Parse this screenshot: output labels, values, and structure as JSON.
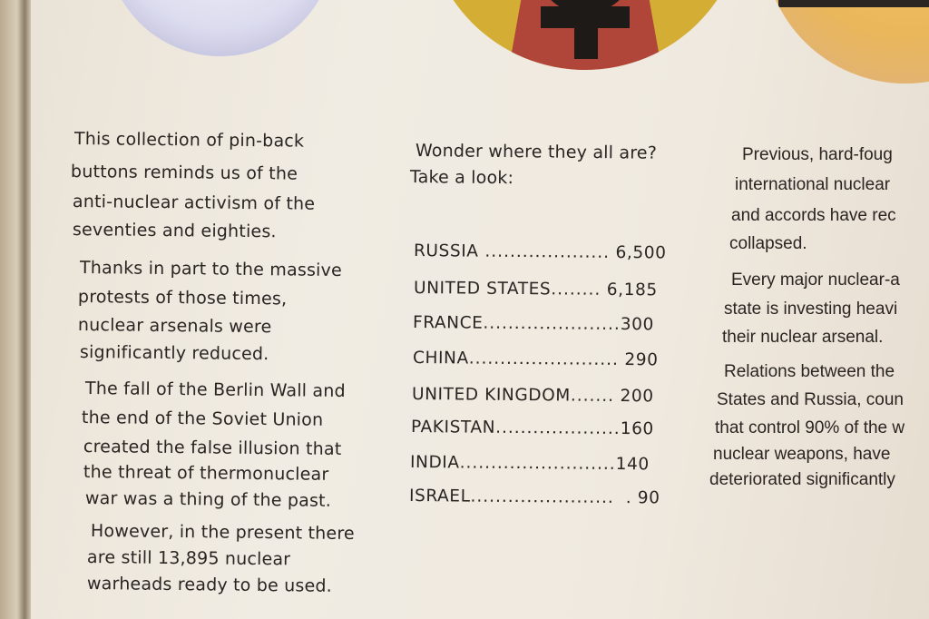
{
  "left_column": [
    "This collection of pin-back",
    "buttons reminds us of the",
    "anti-nuclear activism of the",
    "seventies and eighties.",
    "Thanks in part to the massive",
    "protests of those times,",
    "nuclear arsenals were",
    "significantly reduced.",
    "The fall of the Berlin Wall and",
    "the end of the Soviet Union",
    "created the false illusion that",
    "the threat of thermonuclear",
    "war was a thing of the past.",
    "However, in the present there",
    "are still  13,895 nuclear",
    "warheads ready to be used."
  ],
  "middle_column": {
    "heading": [
      "Wonder where they all are?",
      "Take a look:"
    ],
    "arsenals": [
      {
        "country": "RUSSIA",
        "leader": " ....................",
        "value": " 6,500"
      },
      {
        "country": "UNITED STATES",
        "leader": "........",
        "value": " 6,185"
      },
      {
        "country": "FRANCE",
        "leader": "......................",
        "value": "300"
      },
      {
        "country": "CHINA",
        "leader": "........................",
        "value": " 290"
      },
      {
        "country": "UNITED KINGDOM",
        "leader": ".......",
        "value": " 200"
      },
      {
        "country": "PAKISTAN",
        "leader": "....................",
        "value": "160"
      },
      {
        "country": "INDIA",
        "leader": ".........................",
        "value": "140"
      },
      {
        "country": "ISRAEL",
        "leader": ".......................",
        "value": "  . 90"
      }
    ]
  },
  "right_column": [
    "Previous, hard-foug",
    "international nuclear",
    "and accords have rec",
    "collapsed.",
    "Every major nuclear-a",
    "state is investing heavi",
    "their nuclear arsenal.",
    "Relations between the",
    "States and Russia, coun",
    "that control 90% of the w",
    "nuclear weapons, have",
    "deteriorated significantly"
  ],
  "colors": {
    "panel": "#efe9df",
    "text": "#2a2522",
    "button_yellow": "#d9b43a",
    "button_red": "#b0463a",
    "button_orange": "#f0c064"
  }
}
